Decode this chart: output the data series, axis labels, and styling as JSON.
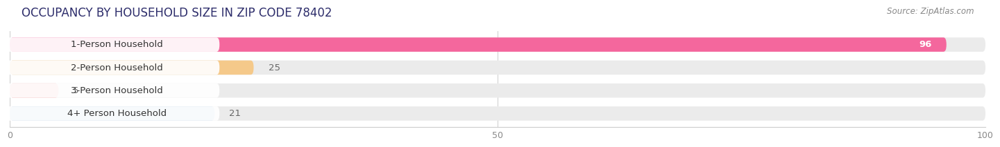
{
  "title": "OCCUPANCY BY HOUSEHOLD SIZE IN ZIP CODE 78402",
  "source": "Source: ZipAtlas.com",
  "categories": [
    "1-Person Household",
    "2-Person Household",
    "3-Person Household",
    "4+ Person Household"
  ],
  "values": [
    96,
    25,
    5,
    21
  ],
  "bar_colors": [
    "#F4679D",
    "#F5C98A",
    "#F4A0A0",
    "#A8C4E0"
  ],
  "background_color": "#ffffff",
  "bar_background_color": "#ebebeb",
  "xlim": [
    0,
    100
  ],
  "xticks": [
    0,
    50,
    100
  ],
  "label_fontsize": 9.5,
  "value_fontsize": 9.5,
  "value_color_inside": "white",
  "value_color_outside": "#666666",
  "bar_height": 0.62,
  "title_fontsize": 12,
  "source_fontsize": 8.5,
  "title_color": "#2d2d6b",
  "label_color": "#333333",
  "tick_color": "#888888"
}
